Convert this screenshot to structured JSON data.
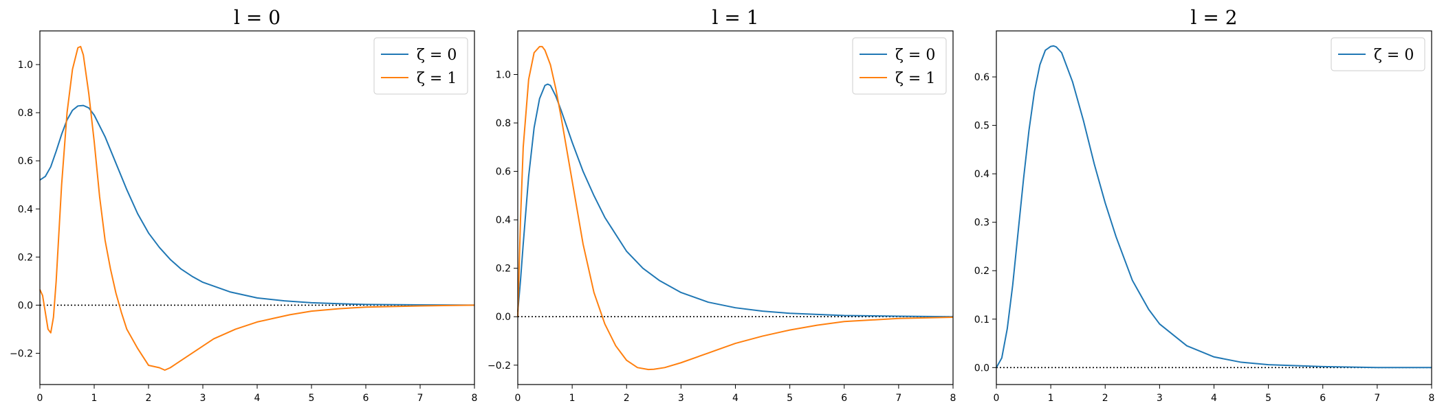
{
  "chart_data": [
    {
      "type": "line",
      "title": "l = 0",
      "xlim": [
        0,
        8
      ],
      "ylim": [
        -0.33,
        1.14
      ],
      "xticks": [
        "0",
        "1",
        "2",
        "3",
        "4",
        "5",
        "6",
        "7",
        "8"
      ],
      "yticks": [
        "−0.2",
        "0.0",
        "0.2",
        "0.4",
        "0.6",
        "0.8",
        "1.0"
      ],
      "ytick_values": [
        -0.2,
        0,
        0.2,
        0.4,
        0.6,
        0.8,
        1.0
      ],
      "grid": false,
      "legend_position": "top-right",
      "zero_line": "dotted",
      "series": [
        {
          "name": "ζ = 0",
          "color": "#1f77b4",
          "x": [
            0,
            0.1,
            0.2,
            0.3,
            0.4,
            0.5,
            0.6,
            0.7,
            0.8,
            0.9,
            1.0,
            1.2,
            1.4,
            1.6,
            1.8,
            2.0,
            2.2,
            2.4,
            2.6,
            2.8,
            3.0,
            3.5,
            4.0,
            4.5,
            5.0,
            5.5,
            6.0,
            7.0,
            8.0
          ],
          "y": [
            0.52,
            0.535,
            0.575,
            0.64,
            0.71,
            0.77,
            0.81,
            0.828,
            0.83,
            0.82,
            0.79,
            0.7,
            0.59,
            0.48,
            0.38,
            0.3,
            0.24,
            0.19,
            0.15,
            0.12,
            0.095,
            0.055,
            0.03,
            0.018,
            0.01,
            0.006,
            0.003,
            0.001,
            0.0
          ]
        },
        {
          "name": "ζ = 1",
          "color": "#ff7f0e",
          "x": [
            0,
            0.05,
            0.1,
            0.15,
            0.2,
            0.25,
            0.3,
            0.35,
            0.4,
            0.5,
            0.6,
            0.7,
            0.75,
            0.8,
            0.9,
            1.0,
            1.1,
            1.2,
            1.3,
            1.4,
            1.5,
            1.6,
            1.7,
            1.8,
            2.0,
            2.2,
            2.3,
            2.4,
            2.6,
            2.8,
            3.0,
            3.2,
            3.4,
            3.6,
            3.8,
            4.0,
            4.3,
            4.6,
            5.0,
            5.5,
            6.0,
            7.0,
            8.0
          ],
          "y": [
            0.065,
            0.04,
            -0.03,
            -0.1,
            -0.115,
            -0.05,
            0.1,
            0.3,
            0.5,
            0.8,
            0.98,
            1.07,
            1.075,
            1.04,
            0.88,
            0.68,
            0.45,
            0.27,
            0.15,
            0.05,
            -0.03,
            -0.1,
            -0.14,
            -0.18,
            -0.25,
            -0.26,
            -0.27,
            -0.26,
            -0.23,
            -0.2,
            -0.17,
            -0.14,
            -0.12,
            -0.1,
            -0.085,
            -0.07,
            -0.055,
            -0.04,
            -0.025,
            -0.015,
            -0.008,
            -0.003,
            0.0
          ]
        }
      ]
    },
    {
      "type": "line",
      "title": "l = 1",
      "xlim": [
        0,
        8
      ],
      "ylim": [
        -0.28,
        1.18
      ],
      "xticks": [
        "0",
        "1",
        "2",
        "3",
        "4",
        "5",
        "6",
        "7",
        "8"
      ],
      "yticks": [
        "−0.2",
        "0.0",
        "0.2",
        "0.4",
        "0.6",
        "0.8",
        "1.0"
      ],
      "ytick_values": [
        -0.2,
        0,
        0.2,
        0.4,
        0.6,
        0.8,
        1.0
      ],
      "grid": false,
      "legend_position": "top-right",
      "zero_line": "dotted",
      "series": [
        {
          "name": "ζ = 0",
          "color": "#1f77b4",
          "x": [
            0,
            0.05,
            0.1,
            0.2,
            0.3,
            0.4,
            0.5,
            0.55,
            0.6,
            0.7,
            0.8,
            1.0,
            1.2,
            1.4,
            1.6,
            1.8,
            2.0,
            2.3,
            2.6,
            3.0,
            3.5,
            4.0,
            4.5,
            5.0,
            6.0,
            7.0,
            8.0
          ],
          "y": [
            0.02,
            0.15,
            0.3,
            0.58,
            0.78,
            0.9,
            0.955,
            0.96,
            0.955,
            0.91,
            0.85,
            0.72,
            0.6,
            0.5,
            0.41,
            0.34,
            0.27,
            0.2,
            0.15,
            0.1,
            0.06,
            0.037,
            0.023,
            0.014,
            0.005,
            0.002,
            0.0
          ]
        },
        {
          "name": "ζ = 1",
          "color": "#ff7f0e",
          "x": [
            0,
            0.05,
            0.1,
            0.2,
            0.3,
            0.4,
            0.45,
            0.5,
            0.6,
            0.7,
            0.8,
            1.0,
            1.2,
            1.4,
            1.6,
            1.8,
            2.0,
            2.2,
            2.4,
            2.5,
            2.7,
            3.0,
            3.5,
            4.0,
            4.5,
            5.0,
            5.5,
            6.0,
            7.0,
            8.0
          ],
          "y": [
            0.0,
            0.4,
            0.7,
            0.98,
            1.09,
            1.115,
            1.115,
            1.1,
            1.04,
            0.94,
            0.82,
            0.56,
            0.3,
            0.1,
            -0.03,
            -0.12,
            -0.18,
            -0.21,
            -0.218,
            -0.217,
            -0.21,
            -0.19,
            -0.15,
            -0.11,
            -0.08,
            -0.055,
            -0.035,
            -0.02,
            -0.007,
            -0.002
          ]
        }
      ]
    },
    {
      "type": "line",
      "title": "l = 2",
      "xlim": [
        0,
        8
      ],
      "ylim": [
        -0.035,
        0.695
      ],
      "xticks": [
        "0",
        "1",
        "2",
        "3",
        "4",
        "5",
        "6",
        "7",
        "8"
      ],
      "yticks": [
        "0.0",
        "0.1",
        "0.2",
        "0.3",
        "0.4",
        "0.5",
        "0.6"
      ],
      "ytick_values": [
        0,
        0.1,
        0.2,
        0.3,
        0.4,
        0.5,
        0.6
      ],
      "grid": false,
      "legend_position": "top-right",
      "zero_line": "dotted",
      "series": [
        {
          "name": "ζ = 0",
          "color": "#1f77b4",
          "x": [
            0,
            0.1,
            0.2,
            0.3,
            0.4,
            0.5,
            0.6,
            0.7,
            0.8,
            0.9,
            1.0,
            1.05,
            1.1,
            1.2,
            1.4,
            1.6,
            1.8,
            2.0,
            2.2,
            2.5,
            2.8,
            3.0,
            3.5,
            4.0,
            4.5,
            5.0,
            6.0,
            7.0,
            8.0
          ],
          "y": [
            0.0,
            0.02,
            0.08,
            0.17,
            0.28,
            0.39,
            0.49,
            0.57,
            0.625,
            0.655,
            0.663,
            0.664,
            0.662,
            0.65,
            0.59,
            0.51,
            0.42,
            0.34,
            0.27,
            0.18,
            0.12,
            0.09,
            0.045,
            0.022,
            0.011,
            0.006,
            0.002,
            0.0,
            0.0
          ]
        }
      ]
    }
  ]
}
